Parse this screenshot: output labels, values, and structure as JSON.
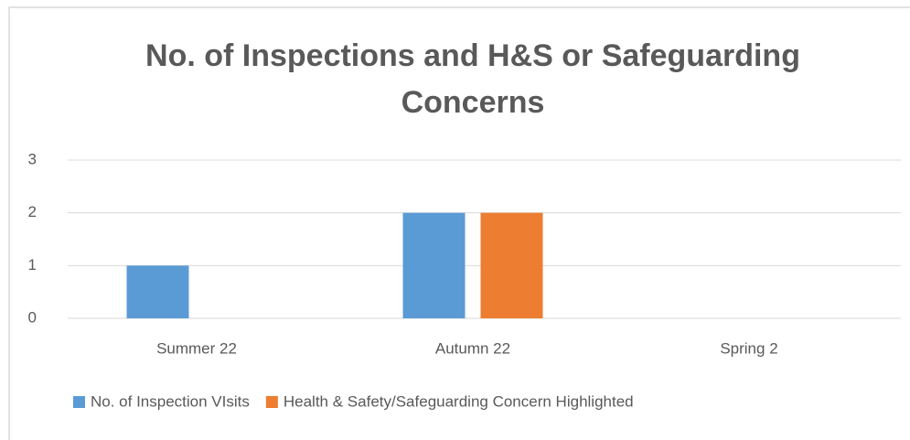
{
  "chart_data": {
    "type": "bar",
    "title": "No. of Inspections and H&S or Safeguarding Concerns",
    "categories": [
      "Summer 22",
      "Autumn 22",
      "Spring 2"
    ],
    "series": [
      {
        "name": "No. of Inspection VIsits",
        "color": "#5b9bd5",
        "values": [
          1,
          2,
          0
        ]
      },
      {
        "name": "Health & Safety/Safeguarding Concern Highlighted",
        "color": "#ed7d31",
        "values": [
          0,
          2,
          0
        ]
      }
    ],
    "ylim": [
      0,
      3
    ],
    "yticks": [
      0,
      1,
      2,
      3
    ],
    "grid": true,
    "legend": "bottom"
  }
}
